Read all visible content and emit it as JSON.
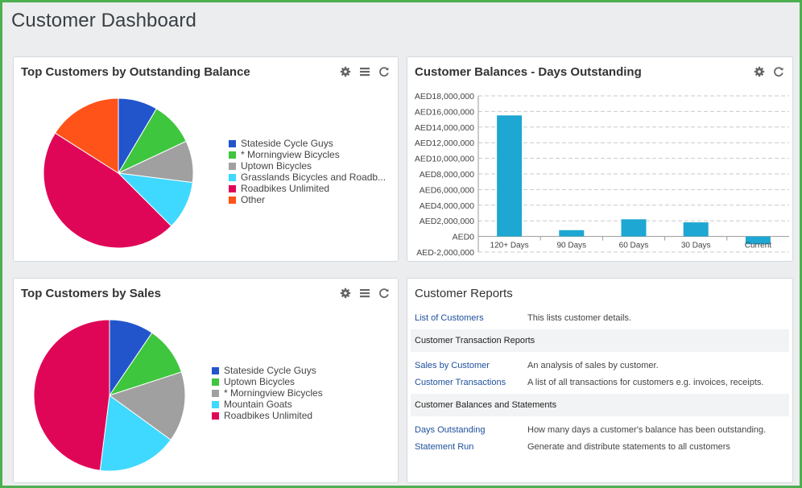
{
  "page": {
    "title": "Customer Dashboard"
  },
  "colors": {
    "frame": "#4caf50",
    "link": "#1d4f9c",
    "bar": "#1ea7d2"
  },
  "panels": {
    "balance": {
      "title": "Top Customers by Outstanding Balance",
      "tools": [
        "gear-icon",
        "list-icon",
        "refresh-icon"
      ],
      "chart_data": {
        "type": "pie",
        "labels": [
          "Stateside Cycle Guys",
          "* Morningview Bicycles",
          "Uptown Bicycles",
          "Grasslands Bicycles and Roadb...",
          "Roadbikes Unlimited",
          "Other"
        ],
        "values": [
          8.5,
          9.5,
          9.0,
          10.5,
          46.5,
          16.0
        ],
        "colors": [
          "#2255cc",
          "#3ec63e",
          "#a0a0a0",
          "#3fd8ff",
          "#e00657",
          "#ff5319"
        ]
      }
    },
    "days": {
      "title": "Customer Balances - Days Outstanding",
      "tools": [
        "gear-icon",
        "refresh-icon"
      ],
      "chart_data": {
        "type": "bar",
        "categories": [
          "120+ Days",
          "90 Days",
          "60 Days",
          "30 Days",
          "Current"
        ],
        "values": [
          15500000,
          800000,
          2200000,
          1800000,
          -1000000
        ],
        "ylim": [
          -2000000,
          18000000
        ],
        "yticks": [
          "AED18,000,000",
          "AED16,000,000",
          "AED14,000,000",
          "AED12,000,000",
          "AED10,000,000",
          "AED8,000,000",
          "AED6,000,000",
          "AED4,000,000",
          "AED2,000,000",
          "AED0",
          "AED-2,000,000"
        ],
        "grid": true
      }
    },
    "sales": {
      "title": "Top Customers by Sales",
      "tools": [
        "gear-icon",
        "list-icon",
        "refresh-icon"
      ],
      "chart_data": {
        "type": "pie",
        "labels": [
          "Stateside Cycle Guys",
          "Uptown Bicycles",
          "* Morningview Bicycles",
          "Mountain Goats",
          "Roadbikes Unlimited"
        ],
        "values": [
          9.5,
          10.5,
          15.0,
          17.0,
          48.0
        ],
        "colors": [
          "#2255cc",
          "#3ec63e",
          "#a0a0a0",
          "#3fd8ff",
          "#e00657"
        ]
      }
    },
    "reports": {
      "title": "Customer Reports",
      "rows": [
        {
          "link": "List of Customers",
          "desc": "This lists customer details."
        }
      ],
      "sections": [
        {
          "title": "Customer Transaction Reports",
          "rows": [
            {
              "link": "Sales by Customer",
              "desc": "An analysis of sales by customer."
            },
            {
              "link": "Customer Transactions",
              "desc": "A list of all transactions for customers e.g. invoices, receipts."
            }
          ]
        },
        {
          "title": "Customer Balances and Statements",
          "rows": [
            {
              "link": "Days Outstanding",
              "desc": "How many days a customer's balance has been outstanding."
            },
            {
              "link": "Statement Run",
              "desc": "Generate and distribute statements to all customers"
            }
          ]
        }
      ]
    }
  }
}
